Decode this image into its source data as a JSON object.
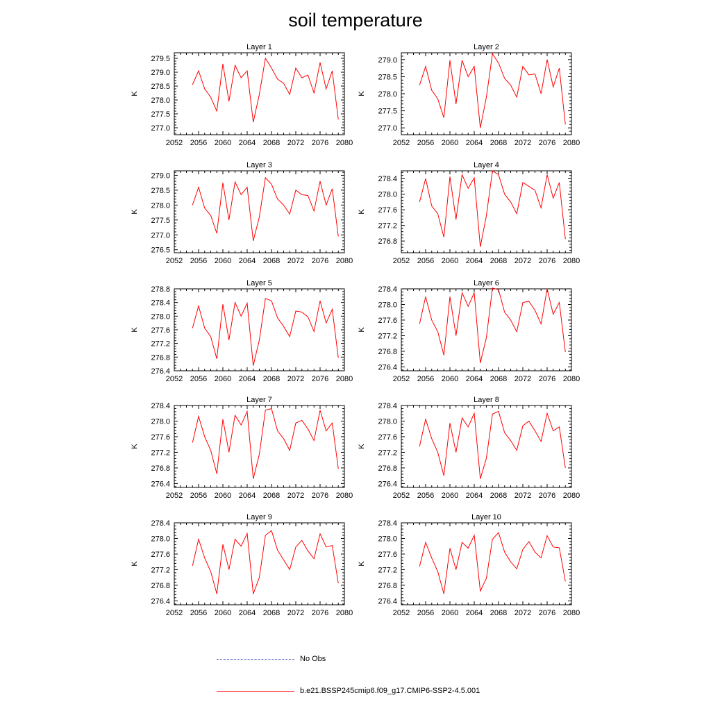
{
  "title": "soil temperature",
  "ylabel": "K",
  "x_ticks": [
    2052,
    2056,
    2060,
    2064,
    2068,
    2072,
    2076,
    2080
  ],
  "colors": {
    "model": "#ff0000",
    "obs": "#4a5fc1",
    "axes": "#000000"
  },
  "legend": [
    {
      "label": "No Obs",
      "style": "dashed",
      "color": "#4a5fc1"
    },
    {
      "label": "b.e21.BSSP245cmip6.f09_g17.CMIP6-SSP2-4.5.001",
      "style": "solid",
      "color": "#ff0000"
    }
  ],
  "chart_data": [
    {
      "type": "line",
      "title": "Layer 1",
      "xlabel": "",
      "ylabel": "K",
      "xlim": [
        2052,
        2080
      ],
      "ylim": [
        276.75,
        279.7
      ],
      "yticks": [
        "279.5",
        "279.0",
        "278.5",
        "278.0",
        "277.5",
        "277.0"
      ],
      "x": [
        2055,
        2056,
        2057,
        2058,
        2059,
        2060,
        2061,
        2062,
        2063,
        2064,
        2065,
        2066,
        2067,
        2068,
        2069,
        2070,
        2071,
        2072,
        2073,
        2074,
        2075,
        2076,
        2077,
        2078,
        2079
      ],
      "series": [
        {
          "values": [
            278.55,
            279.05,
            278.4,
            278.1,
            277.6,
            279.3,
            277.95,
            279.25,
            278.8,
            279.05,
            277.2,
            278.2,
            279.5,
            279.15,
            278.75,
            278.6,
            278.2,
            279.15,
            278.8,
            278.9,
            278.25,
            279.35,
            278.4,
            279.05,
            277.3
          ]
        }
      ]
    },
    {
      "type": "line",
      "title": "Layer 2",
      "xlabel": "",
      "ylabel": "K",
      "xlim": [
        2052,
        2080
      ],
      "ylim": [
        276.8,
        279.2
      ],
      "yticks": [
        "279.0",
        "278.5",
        "278.0",
        "277.5",
        "277.0"
      ],
      "x": [
        2055,
        2056,
        2057,
        2058,
        2059,
        2060,
        2061,
        2062,
        2063,
        2064,
        2065,
        2066,
        2067,
        2068,
        2069,
        2070,
        2071,
        2072,
        2073,
        2074,
        2075,
        2076,
        2077,
        2078,
        2079
      ],
      "series": [
        {
          "values": [
            278.25,
            278.8,
            278.1,
            277.85,
            277.3,
            278.98,
            277.7,
            278.98,
            278.5,
            278.8,
            277.0,
            277.9,
            279.17,
            278.9,
            278.45,
            278.25,
            277.9,
            278.8,
            278.55,
            278.58,
            278.0,
            279.0,
            278.2,
            278.75,
            277.1
          ]
        }
      ]
    },
    {
      "type": "line",
      "title": "Layer 3",
      "xlabel": "",
      "ylabel": "K",
      "xlim": [
        2052,
        2080
      ],
      "ylim": [
        276.4,
        279.15
      ],
      "yticks": [
        "279.0",
        "278.5",
        "278.0",
        "277.5",
        "277.0",
        "276.5"
      ],
      "x": [
        2055,
        2056,
        2057,
        2058,
        2059,
        2060,
        2061,
        2062,
        2063,
        2064,
        2065,
        2066,
        2067,
        2068,
        2069,
        2070,
        2071,
        2072,
        2073,
        2074,
        2075,
        2076,
        2077,
        2078,
        2079
      ],
      "series": [
        {
          "values": [
            278.0,
            278.6,
            277.9,
            277.65,
            277.05,
            278.75,
            277.5,
            278.78,
            278.35,
            278.6,
            276.8,
            277.6,
            278.92,
            278.7,
            278.2,
            278.0,
            277.7,
            278.5,
            278.35,
            278.32,
            277.8,
            278.8,
            278.0,
            278.55,
            276.95
          ]
        }
      ]
    },
    {
      "type": "line",
      "title": "Layer 4",
      "xlabel": "",
      "ylabel": "K",
      "xlim": [
        2052,
        2080
      ],
      "ylim": [
        276.5,
        278.6
      ],
      "yticks": [
        "278.4",
        "278.0",
        "277.6",
        "277.2",
        "276.8"
      ],
      "x": [
        2055,
        2056,
        2057,
        2058,
        2059,
        2060,
        2061,
        2062,
        2063,
        2064,
        2065,
        2066,
        2067,
        2068,
        2069,
        2070,
        2071,
        2072,
        2073,
        2074,
        2075,
        2076,
        2077,
        2078,
        2079
      ],
      "series": [
        {
          "values": [
            277.8,
            278.4,
            277.7,
            277.5,
            276.9,
            278.45,
            277.35,
            278.5,
            278.15,
            278.42,
            276.65,
            277.45,
            278.6,
            278.5,
            278.0,
            277.8,
            277.5,
            278.3,
            278.2,
            278.1,
            277.65,
            278.5,
            277.9,
            278.3,
            276.85
          ]
        }
      ]
    },
    {
      "type": "line",
      "title": "Layer 5",
      "xlabel": "",
      "ylabel": "K",
      "xlim": [
        2052,
        2080
      ],
      "ylim": [
        276.4,
        278.8
      ],
      "yticks": [
        "278.8",
        "278.4",
        "278.0",
        "277.6",
        "277.2",
        "276.8",
        "276.4"
      ],
      "x": [
        2055,
        2056,
        2057,
        2058,
        2059,
        2060,
        2061,
        2062,
        2063,
        2064,
        2065,
        2066,
        2067,
        2068,
        2069,
        2070,
        2071,
        2072,
        2073,
        2074,
        2075,
        2076,
        2077,
        2078,
        2079
      ],
      "series": [
        {
          "values": [
            277.65,
            278.3,
            277.65,
            277.4,
            276.75,
            278.35,
            277.3,
            278.4,
            278.0,
            278.38,
            276.55,
            277.3,
            278.52,
            278.45,
            277.95,
            277.7,
            277.4,
            278.15,
            278.12,
            277.98,
            277.55,
            278.45,
            277.8,
            278.2,
            276.78
          ]
        }
      ]
    },
    {
      "type": "line",
      "title": "Layer 6",
      "xlabel": "",
      "ylabel": "K",
      "xlim": [
        2052,
        2080
      ],
      "ylim": [
        276.3,
        278.4
      ],
      "yticks": [
        "278.4",
        "278.0",
        "277.6",
        "277.2",
        "276.8",
        "276.4"
      ],
      "x": [
        2055,
        2056,
        2057,
        2058,
        2059,
        2060,
        2061,
        2062,
        2063,
        2064,
        2065,
        2066,
        2067,
        2068,
        2069,
        2070,
        2071,
        2072,
        2073,
        2074,
        2075,
        2076,
        2077,
        2078,
        2079
      ],
      "series": [
        {
          "values": [
            277.5,
            278.2,
            277.6,
            277.3,
            276.7,
            278.2,
            277.2,
            278.3,
            277.95,
            278.3,
            276.5,
            277.15,
            278.42,
            278.38,
            277.8,
            277.6,
            277.3,
            278.05,
            278.08,
            277.85,
            277.5,
            278.4,
            277.75,
            278.05,
            276.78
          ]
        }
      ]
    },
    {
      "type": "line",
      "title": "Layer 7",
      "xlabel": "",
      "ylabel": "K",
      "xlim": [
        2052,
        2080
      ],
      "ylim": [
        276.3,
        278.4
      ],
      "yticks": [
        "278.4",
        "278.0",
        "277.6",
        "277.2",
        "276.8",
        "276.4"
      ],
      "x": [
        2055,
        2056,
        2057,
        2058,
        2059,
        2060,
        2061,
        2062,
        2063,
        2064,
        2065,
        2066,
        2067,
        2068,
        2069,
        2070,
        2071,
        2072,
        2073,
        2074,
        2075,
        2076,
        2077,
        2078,
        2079
      ],
      "series": [
        {
          "values": [
            277.45,
            278.12,
            277.6,
            277.25,
            276.65,
            278.05,
            277.2,
            278.15,
            277.9,
            278.25,
            276.52,
            277.15,
            278.28,
            278.32,
            277.75,
            277.55,
            277.25,
            277.95,
            278.02,
            277.8,
            277.5,
            278.28,
            277.75,
            277.95,
            276.78
          ]
        }
      ]
    },
    {
      "type": "line",
      "title": "Layer 8",
      "xlabel": "",
      "ylabel": "K",
      "xlim": [
        2052,
        2080
      ],
      "ylim": [
        276.3,
        278.4
      ],
      "yticks": [
        "278.4",
        "278.0",
        "277.6",
        "277.2",
        "276.8",
        "276.4"
      ],
      "x": [
        2055,
        2056,
        2057,
        2058,
        2059,
        2060,
        2061,
        2062,
        2063,
        2064,
        2065,
        2066,
        2067,
        2068,
        2069,
        2070,
        2071,
        2072,
        2073,
        2074,
        2075,
        2076,
        2077,
        2078,
        2079
      ],
      "series": [
        {
          "values": [
            277.35,
            278.05,
            277.55,
            277.2,
            276.6,
            277.95,
            277.2,
            278.08,
            277.85,
            278.2,
            276.52,
            277.05,
            278.18,
            278.25,
            277.7,
            277.5,
            277.25,
            277.88,
            278.0,
            277.75,
            277.48,
            278.2,
            277.75,
            277.85,
            276.8
          ]
        }
      ]
    },
    {
      "type": "line",
      "title": "Layer 9",
      "xlabel": "",
      "ylabel": "K",
      "xlim": [
        2052,
        2080
      ],
      "ylim": [
        276.3,
        278.4
      ],
      "yticks": [
        "278.4",
        "278.0",
        "277.6",
        "277.2",
        "276.8",
        "276.4"
      ],
      "x": [
        2055,
        2056,
        2057,
        2058,
        2059,
        2060,
        2061,
        2062,
        2063,
        2064,
        2065,
        2066,
        2067,
        2068,
        2069,
        2070,
        2071,
        2072,
        2073,
        2074,
        2075,
        2076,
        2077,
        2078,
        2079
      ],
      "series": [
        {
          "values": [
            277.3,
            277.98,
            277.5,
            277.15,
            276.58,
            277.85,
            277.2,
            277.98,
            277.8,
            278.13,
            276.58,
            277.0,
            278.08,
            278.2,
            277.7,
            277.45,
            277.2,
            277.78,
            277.95,
            277.68,
            277.48,
            278.12,
            277.78,
            277.82,
            276.85
          ]
        }
      ]
    },
    {
      "type": "line",
      "title": "Layer 10",
      "xlabel": "",
      "ylabel": "K",
      "xlim": [
        2052,
        2080
      ],
      "ylim": [
        276.3,
        278.4
      ],
      "yticks": [
        "278.4",
        "278.0",
        "277.6",
        "277.2",
        "276.8",
        "276.4"
      ],
      "x": [
        2055,
        2056,
        2057,
        2058,
        2059,
        2060,
        2061,
        2062,
        2063,
        2064,
        2065,
        2066,
        2067,
        2068,
        2069,
        2070,
        2071,
        2072,
        2073,
        2074,
        2075,
        2076,
        2077,
        2078,
        2079
      ],
      "series": [
        {
          "values": [
            277.28,
            277.9,
            277.5,
            277.15,
            276.58,
            277.75,
            277.2,
            277.9,
            277.75,
            278.08,
            276.65,
            276.98,
            277.98,
            278.15,
            277.65,
            277.4,
            277.22,
            277.72,
            277.92,
            277.65,
            277.5,
            278.07,
            277.78,
            277.76,
            276.9
          ]
        }
      ]
    }
  ]
}
